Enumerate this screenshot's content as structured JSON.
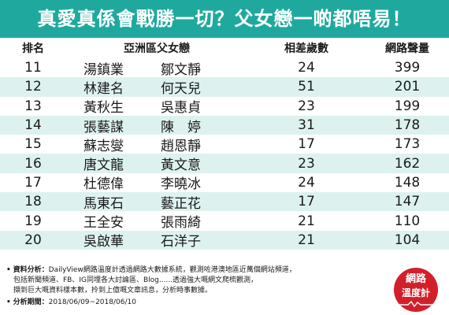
{
  "title": "真愛真係會戰勝一切？父女戀一啲都唔易！",
  "table": {
    "headers": {
      "rank": "排名",
      "pair": "亞洲區父女戀",
      "age_gap": "相差歲數",
      "volume": "網路聲量"
    },
    "rows": [
      {
        "rank": "11",
        "name1": "湯鎮業",
        "name2": "鄒文靜",
        "age_gap": "24",
        "volume": "399"
      },
      {
        "rank": "12",
        "name1": "林建名",
        "name2": "何天兒",
        "age_gap": "51",
        "volume": "201"
      },
      {
        "rank": "13",
        "name1": "黃秋生",
        "name2": "吳惠貞",
        "age_gap": "23",
        "volume": "199"
      },
      {
        "rank": "14",
        "name1": "張藝謀",
        "name2": "陳　婷",
        "age_gap": "31",
        "volume": "178"
      },
      {
        "rank": "15",
        "name1": "蘇志燮",
        "name2": "趙恩靜",
        "age_gap": "17",
        "volume": "173"
      },
      {
        "rank": "16",
        "name1": "唐文龍",
        "name2": "黃文意",
        "age_gap": "23",
        "volume": "162"
      },
      {
        "rank": "17",
        "name1": "杜德偉",
        "name2": "李曉冰",
        "age_gap": "24",
        "volume": "148"
      },
      {
        "rank": "18",
        "name1": "馬東石",
        "name2": "藝正花",
        "age_gap": "17",
        "volume": "147"
      },
      {
        "rank": "19",
        "name1": "王全安",
        "name2": "張雨綺",
        "age_gap": "21",
        "volume": "110"
      },
      {
        "rank": "20",
        "name1": "吳啟華",
        "name2": "石洋子",
        "age_gap": "21",
        "volume": "104"
      }
    ]
  },
  "notes": {
    "bullet": "•",
    "analysis_label": "資料分析：",
    "analysis_line1": "DailyView網路溫度計透過網路大數據系統，觀測咗港澳地區近萬個網站頻道，",
    "analysis_line2": "包括新聞頻道、FB、IG同埋各大討論區、Blog......透過強大嘅網文爬梳觀測，",
    "analysis_line3": "擷到巨大嘅資料樣本數，拎到上億嘅文章訊息，分析時事數據。",
    "period_label": "分析期間：",
    "period_value": "2018/06/09~2018/06/10"
  },
  "logo": {
    "line1": "網路",
    "line2": "溫度計"
  },
  "colors": {
    "title_bg": "#1fa99e",
    "row_stripe": "#ddf2ef",
    "logo_bg": "#d2202a"
  }
}
